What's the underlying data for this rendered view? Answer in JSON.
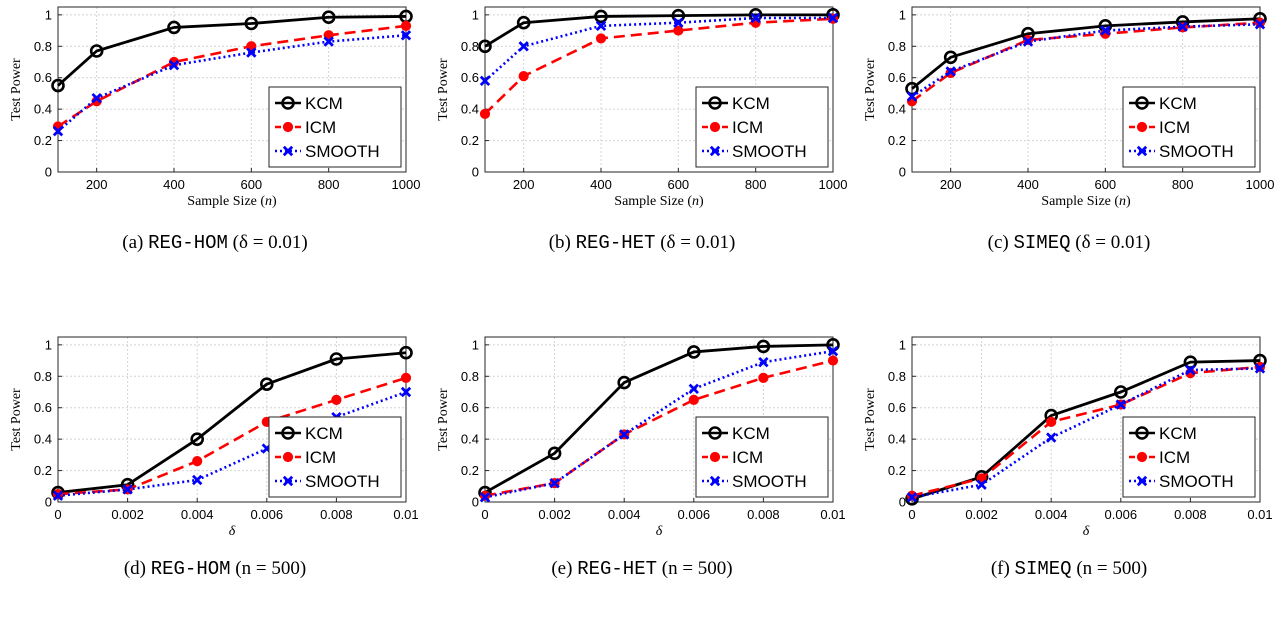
{
  "chart_data": [
    {
      "type": "line",
      "caption": {
        "letter": "(a)",
        "dataset": "REG-HOM",
        "condition": "(δ = 0.01)"
      },
      "xlabel": "Sample Size (n)",
      "ylabel": "Test Power",
      "x": [
        100,
        200,
        400,
        600,
        800,
        1000
      ],
      "xticks": [
        "200",
        "400",
        "600",
        "800",
        "1000"
      ],
      "xtick_values": [
        200,
        400,
        600,
        800,
        1000
      ],
      "xlim": [
        100,
        1000
      ],
      "yticks": [
        "0",
        "0.2",
        "0.4",
        "0.6",
        "0.8",
        "1"
      ],
      "ylim": [
        0,
        1.05
      ],
      "grid": true,
      "legend": "bottom-right",
      "series": [
        {
          "name": "KCM",
          "values": [
            0.55,
            0.77,
            0.92,
            0.945,
            0.985,
            0.99
          ]
        },
        {
          "name": "ICM",
          "values": [
            0.29,
            0.45,
            0.7,
            0.8,
            0.87,
            0.93
          ]
        },
        {
          "name": "SMOOTH",
          "values": [
            0.26,
            0.47,
            0.68,
            0.76,
            0.83,
            0.87
          ]
        }
      ]
    },
    {
      "type": "line",
      "caption": {
        "letter": "(b)",
        "dataset": "REG-HET",
        "condition": "(δ = 0.01)"
      },
      "xlabel": "Sample Size (n)",
      "ylabel": "Test Power",
      "x": [
        100,
        200,
        400,
        600,
        800,
        1000
      ],
      "xticks": [
        "200",
        "400",
        "600",
        "800",
        "1000"
      ],
      "xtick_values": [
        200,
        400,
        600,
        800,
        1000
      ],
      "xlim": [
        100,
        1000
      ],
      "yticks": [
        "0",
        "0.2",
        "0.4",
        "0.6",
        "0.8",
        "1"
      ],
      "ylim": [
        0,
        1.05
      ],
      "grid": true,
      "legend": "bottom-right",
      "series": [
        {
          "name": "KCM",
          "values": [
            0.8,
            0.95,
            0.99,
            0.995,
            1.0,
            1.0
          ]
        },
        {
          "name": "ICM",
          "values": [
            0.37,
            0.61,
            0.85,
            0.9,
            0.95,
            0.975
          ]
        },
        {
          "name": "SMOOTH",
          "values": [
            0.58,
            0.8,
            0.93,
            0.95,
            0.98,
            0.98
          ]
        }
      ]
    },
    {
      "type": "line",
      "caption": {
        "letter": "(c)",
        "dataset": "SIMEQ",
        "condition": "(δ = 0.01)"
      },
      "xlabel": "Sample Size (n)",
      "ylabel": "Test Power",
      "x": [
        100,
        200,
        400,
        600,
        800,
        1000
      ],
      "xticks": [
        "200",
        "400",
        "600",
        "800",
        "1000"
      ],
      "xtick_values": [
        200,
        400,
        600,
        800,
        1000
      ],
      "xlim": [
        100,
        1000
      ],
      "yticks": [
        "0",
        "0.2",
        "0.4",
        "0.6",
        "0.8",
        "1"
      ],
      "ylim": [
        0,
        1.05
      ],
      "grid": true,
      "legend": "bottom-right",
      "series": [
        {
          "name": "KCM",
          "values": [
            0.53,
            0.73,
            0.88,
            0.93,
            0.955,
            0.975
          ]
        },
        {
          "name": "ICM",
          "values": [
            0.45,
            0.63,
            0.84,
            0.88,
            0.92,
            0.95
          ]
        },
        {
          "name": "SMOOTH",
          "values": [
            0.48,
            0.64,
            0.83,
            0.9,
            0.925,
            0.94
          ]
        }
      ]
    },
    {
      "type": "line",
      "caption": {
        "letter": "(d)",
        "dataset": "REG-HOM",
        "condition": "(n = 500)"
      },
      "xlabel": "δ",
      "ylabel": "Test Power",
      "x": [
        0,
        0.002,
        0.004,
        0.006,
        0.008,
        0.01
      ],
      "xticks": [
        "0",
        "0.002",
        "0.004",
        "0.006",
        "0.008",
        "0.01"
      ],
      "xtick_values": [
        0,
        0.002,
        0.004,
        0.006,
        0.008,
        0.01
      ],
      "xlim": [
        0,
        0.01
      ],
      "yticks": [
        "0",
        "0.2",
        "0.4",
        "0.6",
        "0.8",
        "1"
      ],
      "ylim": [
        0,
        1.05
      ],
      "grid": true,
      "legend": "bottom-right",
      "series": [
        {
          "name": "KCM",
          "values": [
            0.06,
            0.11,
            0.4,
            0.75,
            0.91,
            0.95
          ]
        },
        {
          "name": "ICM",
          "values": [
            0.05,
            0.08,
            0.26,
            0.51,
            0.65,
            0.79
          ]
        },
        {
          "name": "SMOOTH",
          "values": [
            0.04,
            0.08,
            0.14,
            0.34,
            0.54,
            0.7
          ]
        }
      ]
    },
    {
      "type": "line",
      "caption": {
        "letter": "(e)",
        "dataset": "REG-HET",
        "condition": "(n = 500)"
      },
      "xlabel": "δ",
      "ylabel": "Test Power",
      "x": [
        0,
        0.002,
        0.004,
        0.006,
        0.008,
        0.01
      ],
      "xticks": [
        "0",
        "0.002",
        "0.004",
        "0.006",
        "0.008",
        "0.01"
      ],
      "xtick_values": [
        0,
        0.002,
        0.004,
        0.006,
        0.008,
        0.01
      ],
      "xlim": [
        0,
        0.01
      ],
      "yticks": [
        "0",
        "0.2",
        "0.4",
        "0.6",
        "0.8",
        "1"
      ],
      "ylim": [
        0,
        1.05
      ],
      "grid": true,
      "legend": "bottom-right",
      "series": [
        {
          "name": "KCM",
          "values": [
            0.06,
            0.31,
            0.76,
            0.955,
            0.99,
            1.0
          ]
        },
        {
          "name": "ICM",
          "values": [
            0.04,
            0.12,
            0.43,
            0.65,
            0.79,
            0.9
          ]
        },
        {
          "name": "SMOOTH",
          "values": [
            0.03,
            0.12,
            0.43,
            0.72,
            0.89,
            0.96
          ]
        }
      ]
    },
    {
      "type": "line",
      "caption": {
        "letter": "(f)",
        "dataset": "SIMEQ",
        "condition": "(n = 500)"
      },
      "xlabel": "δ",
      "ylabel": "Test Power",
      "x": [
        0,
        0.002,
        0.004,
        0.006,
        0.008,
        0.01
      ],
      "xticks": [
        "0",
        "0.002",
        "0.004",
        "0.006",
        "0.008",
        "0.01"
      ],
      "xtick_values": [
        0,
        0.002,
        0.004,
        0.006,
        0.008,
        0.01
      ],
      "xlim": [
        0,
        0.01
      ],
      "yticks": [
        "0",
        "0.2",
        "0.4",
        "0.6",
        "0.8",
        "1"
      ],
      "ylim": [
        0,
        1.05
      ],
      "grid": true,
      "legend": "bottom-right",
      "series": [
        {
          "name": "KCM",
          "values": [
            0.02,
            0.16,
            0.55,
            0.7,
            0.89,
            0.9
          ]
        },
        {
          "name": "ICM",
          "values": [
            0.04,
            0.15,
            0.51,
            0.62,
            0.82,
            0.86
          ]
        },
        {
          "name": "SMOOTH",
          "values": [
            0.03,
            0.11,
            0.41,
            0.62,
            0.84,
            0.85
          ]
        }
      ]
    }
  ],
  "styles": {
    "KCM": {
      "color": "#000000",
      "dash": "",
      "marker": "circle"
    },
    "ICM": {
      "color": "#ff0000",
      "dash": "11 6",
      "marker": "dot"
    },
    "SMOOTH": {
      "color": "#0000ff",
      "dash": "2 3",
      "marker": "cross"
    }
  }
}
